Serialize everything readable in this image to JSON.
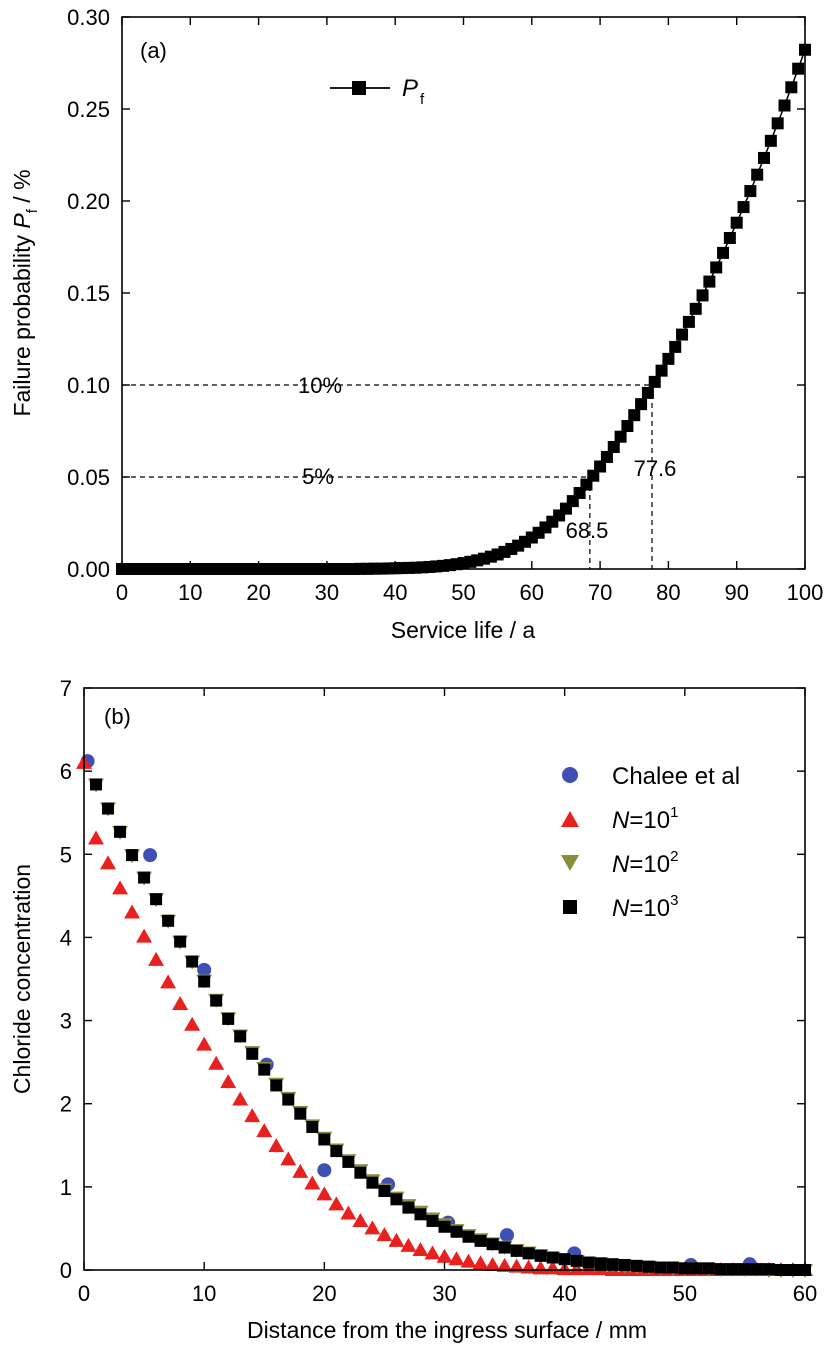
{
  "chart_data": [
    {
      "type": "scatter",
      "panel_label": "(a)",
      "xlabel": "Service life / a",
      "ylabel_main": "Failure probability ",
      "ylabel_symbol": "P",
      "ylabel_sub": "f",
      "ylabel_unit": " / %",
      "xlim": [
        0,
        100
      ],
      "ylim": [
        0,
        0.3
      ],
      "xticks": [
        "0",
        "10",
        "20",
        "30",
        "40",
        "50",
        "60",
        "70",
        "80",
        "90",
        "100"
      ],
      "yticks": [
        "0.00",
        "0.05",
        "0.10",
        "0.15",
        "0.20",
        "0.25",
        "0.30"
      ],
      "grid": false,
      "legend_position": "top-left",
      "series": [
        {
          "name_symbol": "P",
          "name_sub": "f",
          "marker": "square",
          "color": "#000000",
          "line": "connected",
          "x": [
            0,
            1,
            2,
            3,
            4,
            5,
            6,
            7,
            8,
            9,
            10,
            11,
            12,
            13,
            14,
            15,
            16,
            17,
            18,
            19,
            20,
            21,
            22,
            23,
            24,
            25,
            26,
            27,
            28,
            29,
            30,
            31,
            32,
            33,
            34,
            35,
            36,
            37,
            38,
            39,
            40,
            41,
            42,
            43,
            44,
            45,
            46,
            47,
            48,
            49,
            50,
            51,
            52,
            53,
            54,
            55,
            56,
            57,
            58,
            59,
            60,
            61,
            62,
            63,
            64,
            65,
            66,
            67,
            68,
            69,
            70,
            71,
            72,
            73,
            74,
            75,
            76,
            77,
            78,
            79,
            80,
            81,
            82,
            83,
            84,
            85,
            86,
            87,
            88,
            89,
            90,
            91,
            92,
            93,
            94,
            95,
            96,
            97,
            98,
            99,
            100
          ],
          "y": [
            0,
            0,
            0,
            0,
            0,
            0,
            0,
            0,
            0,
            0,
            0,
            0,
            0,
            0,
            0,
            0,
            0,
            0,
            0,
            0,
            0,
            0,
            0,
            0,
            0,
            0,
            0,
            0,
            0,
            0,
            0,
            0,
            0,
            0,
            0,
            0.0001,
            0.0001,
            0.0002,
            0.0002,
            0.0003,
            0.0004,
            0.0005,
            0.0006,
            0.0007,
            0.0009,
            0.0011,
            0.0014,
            0.0017,
            0.0021,
            0.0026,
            0.0032,
            0.0039,
            0.0047,
            0.0056,
            0.0067,
            0.0079,
            0.0093,
            0.0109,
            0.0127,
            0.0148,
            0.0171,
            0.0197,
            0.0226,
            0.0257,
            0.0291,
            0.0328,
            0.0369,
            0.0413,
            0.0459,
            0.0507,
            0.0557,
            0.0609,
            0.0663,
            0.0719,
            0.0777,
            0.0836,
            0.0896,
            0.0957,
            0.1017,
            0.1078,
            0.1142,
            0.1207,
            0.1274,
            0.1343,
            0.1414,
            0.1487,
            0.1562,
            0.1639,
            0.1718,
            0.1799,
            0.1882,
            0.1967,
            0.2054,
            0.2143,
            0.2234,
            0.2327,
            0.2422,
            0.2519,
            0.2618,
            0.2719,
            0.2822
          ]
        }
      ],
      "annotations": [
        {
          "label": "10%",
          "y": 0.1,
          "x": 77.6
        },
        {
          "label": "5%",
          "y": 0.05,
          "x": 68.5
        },
        {
          "label": "77.6",
          "x": 77.6
        },
        {
          "label": "68.5",
          "x": 68.5
        }
      ]
    },
    {
      "type": "scatter",
      "panel_label": "(b)",
      "xlabel": "Distance from the ingress surface / mm",
      "ylabel": "Chloride concentration",
      "xlim": [
        0,
        60
      ],
      "ylim": [
        0,
        7
      ],
      "xticks": [
        "0",
        "10",
        "20",
        "30",
        "40",
        "50",
        "60"
      ],
      "yticks": [
        "0",
        "1",
        "2",
        "3",
        "4",
        "5",
        "6",
        "7"
      ],
      "grid": false,
      "legend_position": "top-right",
      "series": [
        {
          "name": "Chalee et al",
          "marker": "circle",
          "color": "#3f4fb3",
          "x": [
            0.3,
            5.5,
            10,
            15.2,
            20,
            25.3,
            30.3,
            35.2,
            40.8,
            50.5,
            55.4
          ],
          "y": [
            6.12,
            4.99,
            3.61,
            2.47,
            1.2,
            1.03,
            0.57,
            0.42,
            0.2,
            0.06,
            0.07
          ]
        },
        {
          "name_symbol": "N",
          "name_base": "=10",
          "name_sup": "1",
          "marker": "triangle-up",
          "color": "#e8211f",
          "x": [
            0,
            1,
            2,
            3,
            4,
            5,
            6,
            7,
            8,
            9,
            10,
            11,
            12,
            13,
            14,
            15,
            16,
            17,
            18,
            19,
            20,
            21,
            22,
            23,
            24,
            25,
            26,
            27,
            28,
            29,
            30,
            31,
            32,
            33,
            34,
            35,
            36,
            37,
            38,
            39,
            40,
            41,
            42,
            43,
            44,
            45,
            46,
            47,
            48,
            49,
            50,
            51,
            52,
            53,
            54,
            55,
            56,
            57,
            58,
            59,
            60
          ],
          "y": [
            6.1,
            5.19,
            4.89,
            4.59,
            4.3,
            4.01,
            3.73,
            3.46,
            3.2,
            2.95,
            2.71,
            2.48,
            2.26,
            2.05,
            1.85,
            1.67,
            1.49,
            1.33,
            1.18,
            1.04,
            0.91,
            0.79,
            0.68,
            0.59,
            0.5,
            0.42,
            0.35,
            0.29,
            0.24,
            0.2,
            0.16,
            0.13,
            0.1,
            0.08,
            0.06,
            0.05,
            0.04,
            0.03,
            0.02,
            0.02,
            0.01,
            0.01,
            0.01,
            0.01,
            0,
            0,
            0,
            0,
            0,
            0,
            0,
            0,
            0,
            0,
            0,
            0,
            0,
            0,
            0,
            0,
            0
          ]
        },
        {
          "name_symbol": "N",
          "name_base": "=10",
          "name_sup": "2",
          "marker": "triangle-down",
          "color": "#8a8c3a",
          "x": [
            1,
            2,
            3,
            4,
            5,
            6,
            7,
            8,
            9,
            10,
            11,
            12,
            13,
            14,
            15,
            16,
            17,
            18,
            19,
            20,
            21,
            22,
            23,
            24,
            25,
            26,
            27,
            28,
            29,
            30,
            31,
            32,
            33,
            34,
            35,
            36,
            37,
            38,
            39,
            40,
            41,
            42,
            43,
            44,
            45,
            46,
            47,
            48,
            49,
            50,
            51,
            52,
            53,
            54,
            55,
            56,
            57,
            58,
            59,
            60
          ],
          "y": [
            5.84,
            5.55,
            5.27,
            4.99,
            4.72,
            4.46,
            4.2,
            3.95,
            3.71,
            3.48,
            3.25,
            3.03,
            2.82,
            2.62,
            2.43,
            2.24,
            2.07,
            1.9,
            1.74,
            1.59,
            1.45,
            1.32,
            1.2,
            1.08,
            0.97,
            0.87,
            0.78,
            0.7,
            0.62,
            0.55,
            0.48,
            0.42,
            0.37,
            0.32,
            0.28,
            0.24,
            0.21,
            0.18,
            0.15,
            0.13,
            0.11,
            0.09,
            0.08,
            0.06,
            0.05,
            0.04,
            0.04,
            0.03,
            0.02,
            0.02,
            0.02,
            0.01,
            0.01,
            0.01,
            0.01,
            0.01,
            0,
            0,
            0,
            0
          ]
        },
        {
          "name_symbol": "N",
          "name_base": "=10",
          "name_sup": "3",
          "marker": "square",
          "color": "#000000",
          "x": [
            1,
            2,
            3,
            4,
            5,
            6,
            7,
            8,
            9,
            10,
            11,
            12,
            13,
            14,
            15,
            16,
            17,
            18,
            19,
            20,
            21,
            22,
            23,
            24,
            25,
            26,
            27,
            28,
            29,
            30,
            31,
            32,
            33,
            34,
            35,
            36,
            37,
            38,
            39,
            40,
            41,
            42,
            43,
            44,
            45,
            46,
            47,
            48,
            49,
            50,
            51,
            52,
            53,
            54,
            55,
            56,
            57,
            58,
            59,
            60
          ],
          "y": [
            5.84,
            5.55,
            5.27,
            4.99,
            4.72,
            4.46,
            4.2,
            3.95,
            3.71,
            3.47,
            3.24,
            3.02,
            2.81,
            2.6,
            2.41,
            2.22,
            2.05,
            1.88,
            1.72,
            1.57,
            1.43,
            1.3,
            1.17,
            1.05,
            0.95,
            0.85,
            0.75,
            0.67,
            0.59,
            0.52,
            0.46,
            0.4,
            0.35,
            0.31,
            0.27,
            0.23,
            0.2,
            0.17,
            0.15,
            0.13,
            0.11,
            0.09,
            0.08,
            0.07,
            0.06,
            0.05,
            0.04,
            0.03,
            0.03,
            0.02,
            0.02,
            0.02,
            0.01,
            0.01,
            0.01,
            0.01,
            0.01,
            0,
            0,
            0
          ]
        }
      ]
    }
  ]
}
